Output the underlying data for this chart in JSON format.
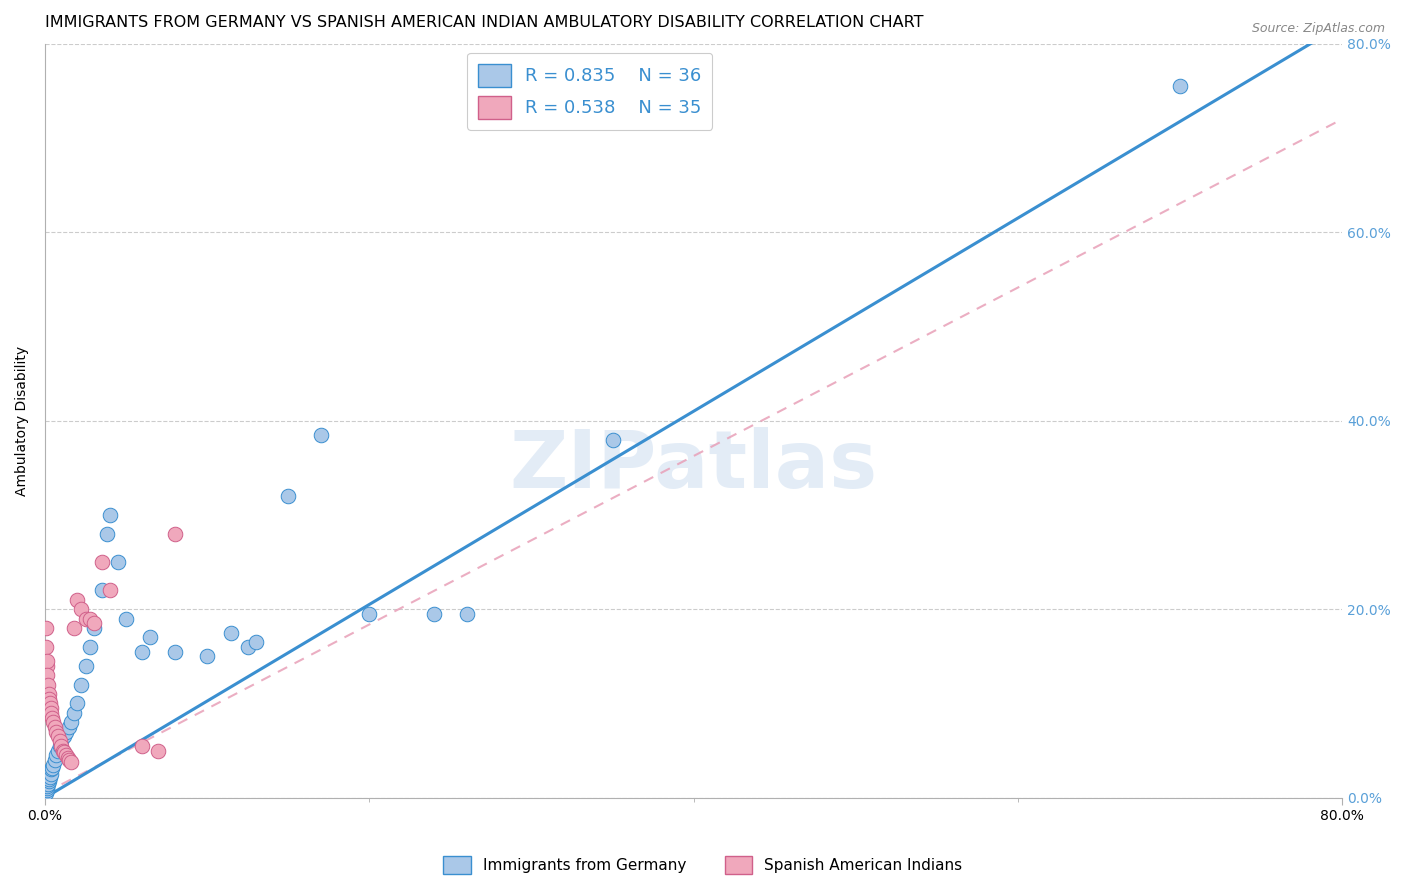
{
  "title": "IMMIGRANTS FROM GERMANY VS SPANISH AMERICAN INDIAN AMBULATORY DISABILITY CORRELATION CHART",
  "source": "Source: ZipAtlas.com",
  "ylabel": "Ambulatory Disability",
  "xlim": [
    0,
    0.8
  ],
  "ylim": [
    0,
    0.8
  ],
  "xtick_vals": [
    0.0,
    0.2,
    0.4,
    0.6,
    0.8
  ],
  "ytick_vals": [
    0.0,
    0.2,
    0.4,
    0.6,
    0.8
  ],
  "watermark": "ZIPatlas",
  "blue_scatter": [
    [
      0.0008,
      0.005
    ],
    [
      0.001,
      0.008
    ],
    [
      0.0012,
      0.01
    ],
    [
      0.0015,
      0.012
    ],
    [
      0.002,
      0.015
    ],
    [
      0.0022,
      0.018
    ],
    [
      0.0025,
      0.02
    ],
    [
      0.003,
      0.022
    ],
    [
      0.0035,
      0.025
    ],
    [
      0.004,
      0.03
    ],
    [
      0.0045,
      0.032
    ],
    [
      0.005,
      0.035
    ],
    [
      0.006,
      0.04
    ],
    [
      0.007,
      0.045
    ],
    [
      0.008,
      0.05
    ],
    [
      0.009,
      0.055
    ],
    [
      0.01,
      0.06
    ],
    [
      0.012,
      0.065
    ],
    [
      0.013,
      0.07
    ],
    [
      0.015,
      0.075
    ],
    [
      0.016,
      0.08
    ],
    [
      0.018,
      0.09
    ],
    [
      0.02,
      0.1
    ],
    [
      0.022,
      0.12
    ],
    [
      0.025,
      0.14
    ],
    [
      0.028,
      0.16
    ],
    [
      0.03,
      0.18
    ],
    [
      0.035,
      0.22
    ],
    [
      0.038,
      0.28
    ],
    [
      0.04,
      0.3
    ],
    [
      0.045,
      0.25
    ],
    [
      0.05,
      0.19
    ],
    [
      0.06,
      0.155
    ],
    [
      0.065,
      0.17
    ],
    [
      0.08,
      0.155
    ],
    [
      0.1,
      0.15
    ],
    [
      0.115,
      0.175
    ],
    [
      0.125,
      0.16
    ],
    [
      0.13,
      0.165
    ],
    [
      0.15,
      0.32
    ],
    [
      0.17,
      0.385
    ],
    [
      0.2,
      0.195
    ],
    [
      0.24,
      0.195
    ],
    [
      0.26,
      0.195
    ],
    [
      0.35,
      0.38
    ],
    [
      0.7,
      0.755
    ]
  ],
  "pink_scatter": [
    [
      0.0005,
      0.18
    ],
    [
      0.0008,
      0.16
    ],
    [
      0.001,
      0.14
    ],
    [
      0.0012,
      0.145
    ],
    [
      0.0015,
      0.13
    ],
    [
      0.002,
      0.12
    ],
    [
      0.0022,
      0.11
    ],
    [
      0.0025,
      0.105
    ],
    [
      0.003,
      0.1
    ],
    [
      0.0035,
      0.095
    ],
    [
      0.004,
      0.09
    ],
    [
      0.0045,
      0.085
    ],
    [
      0.005,
      0.08
    ],
    [
      0.006,
      0.075
    ],
    [
      0.007,
      0.07
    ],
    [
      0.008,
      0.065
    ],
    [
      0.009,
      0.06
    ],
    [
      0.01,
      0.055
    ],
    [
      0.011,
      0.05
    ],
    [
      0.012,
      0.048
    ],
    [
      0.013,
      0.045
    ],
    [
      0.014,
      0.042
    ],
    [
      0.015,
      0.04
    ],
    [
      0.016,
      0.038
    ],
    [
      0.018,
      0.18
    ],
    [
      0.02,
      0.21
    ],
    [
      0.022,
      0.2
    ],
    [
      0.025,
      0.19
    ],
    [
      0.028,
      0.19
    ],
    [
      0.03,
      0.185
    ],
    [
      0.035,
      0.25
    ],
    [
      0.04,
      0.22
    ],
    [
      0.06,
      0.055
    ],
    [
      0.07,
      0.05
    ],
    [
      0.08,
      0.28
    ]
  ],
  "blue_line_x": [
    0.0,
    0.8
  ],
  "blue_line_y": [
    0.0,
    0.82
  ],
  "pink_line_x": [
    0.0,
    0.8
  ],
  "pink_line_y": [
    0.005,
    0.72
  ],
  "dot_color_blue": "#aac8e8",
  "dot_color_pink": "#f0a8bc",
  "line_color_blue": "#3a8fd0",
  "line_color_pink": "#e8a0b8",
  "background_color": "#ffffff",
  "grid_color": "#cccccc",
  "title_fontsize": 11.5,
  "axis_label_fontsize": 10,
  "tick_fontsize": 10,
  "right_tick_color": "#5aa0d8",
  "legend_fontsize": 13
}
